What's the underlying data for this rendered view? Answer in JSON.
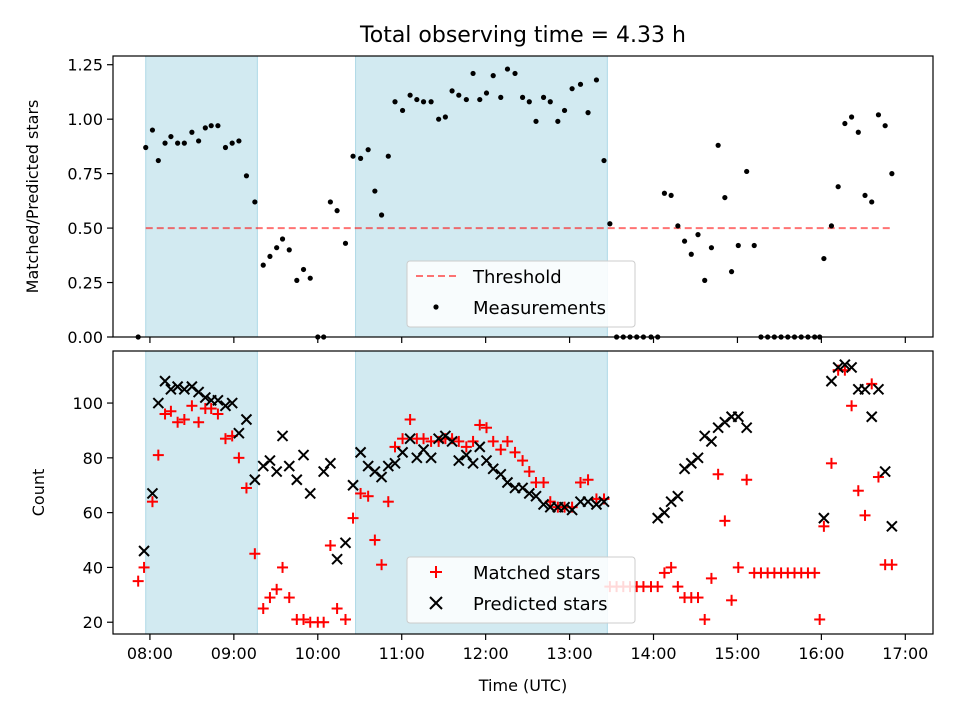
{
  "figure": {
    "title": "Total observing time = 4.33 h",
    "xlabel": "Time (UTC)",
    "x_ticks": [
      "08:00",
      "09:00",
      "10:00",
      "11:00",
      "12:00",
      "13:00",
      "14:00",
      "15:00",
      "16:00",
      "17:00"
    ],
    "x_range_hours": [
      7.56,
      17.33
    ],
    "shaded_intervals_hours": [
      [
        7.95,
        9.28
      ],
      [
        10.45,
        13.45
      ]
    ],
    "colors": {
      "shade": "#add8e6",
      "threshold": "#ff0000",
      "measurement": "#000000",
      "matched": "#ff0000",
      "predicted": "#000000"
    }
  },
  "chart_data": [
    {
      "type": "scatter",
      "ylabel": "Matched/Predicted stars",
      "ylim": [
        0,
        1.29
      ],
      "y_ticks": [
        "0.00",
        "0.25",
        "0.50",
        "0.75",
        "1.00",
        "1.25"
      ],
      "legend": {
        "placement": "lower-center",
        "entries": [
          "Threshold",
          "Measurements"
        ]
      },
      "threshold": {
        "name": "Threshold",
        "y": 0.5,
        "x_range": [
          7.95,
          16.85
        ]
      },
      "series": [
        {
          "name": "Measurements",
          "x": [
            7.86,
            7.95,
            8.03,
            8.1,
            8.18,
            8.25,
            8.33,
            8.41,
            8.5,
            8.58,
            8.66,
            8.73,
            8.81,
            8.9,
            8.98,
            9.06,
            9.15,
            9.25,
            9.35,
            9.43,
            9.51,
            9.58,
            9.66,
            9.75,
            9.83,
            9.91,
            10.0,
            10.07,
            10.15,
            10.23,
            10.33,
            10.42,
            10.51,
            10.6,
            10.68,
            10.76,
            10.84,
            10.92,
            11.01,
            11.1,
            11.18,
            11.26,
            11.35,
            11.44,
            11.52,
            11.6,
            11.68,
            11.77,
            11.85,
            11.93,
            12.01,
            12.09,
            12.18,
            12.26,
            12.35,
            12.44,
            12.52,
            12.6,
            12.69,
            12.77,
            12.86,
            12.94,
            13.03,
            13.13,
            13.22,
            13.32,
            13.41,
            13.48,
            13.56,
            13.64,
            13.72,
            13.8,
            13.88,
            13.97,
            14.05,
            14.13,
            14.21,
            14.29,
            14.37,
            14.45,
            14.53,
            14.61,
            14.69,
            14.77,
            14.85,
            14.93,
            15.01,
            15.11,
            15.2,
            15.28,
            15.36,
            15.44,
            15.52,
            15.6,
            15.68,
            15.76,
            15.84,
            15.92,
            15.98,
            16.03,
            16.12,
            16.2,
            16.28,
            16.36,
            16.44,
            16.52,
            16.6,
            16.68,
            16.76,
            16.84
          ],
          "y": [
            0.0,
            0.87,
            0.95,
            0.81,
            0.89,
            0.92,
            0.89,
            0.89,
            0.94,
            0.9,
            0.96,
            0.97,
            0.97,
            0.87,
            0.89,
            0.9,
            0.74,
            0.62,
            0.33,
            0.37,
            0.41,
            0.45,
            0.4,
            0.26,
            0.31,
            0.27,
            0.0,
            0.0,
            0.62,
            0.58,
            0.43,
            0.83,
            0.82,
            0.86,
            0.67,
            0.56,
            0.83,
            1.08,
            1.04,
            1.11,
            1.09,
            1.08,
            1.08,
            1.0,
            1.01,
            1.13,
            1.11,
            1.09,
            1.21,
            1.09,
            1.12,
            1.2,
            1.1,
            1.23,
            1.21,
            1.1,
            1.08,
            0.99,
            1.1,
            1.08,
            0.99,
            1.04,
            1.14,
            1.16,
            1.03,
            1.18,
            0.81,
            0.52,
            0.0,
            0.0,
            0.0,
            0.0,
            0.0,
            0.0,
            0.0,
            0.66,
            0.65,
            0.51,
            0.44,
            0.38,
            0.47,
            0.26,
            0.41,
            0.88,
            0.64,
            0.3,
            0.42,
            0.76,
            0.42,
            0.0,
            0.0,
            0.0,
            0.0,
            0.0,
            0.0,
            0.0,
            0.0,
            0.0,
            0.0,
            0.36,
            0.51,
            0.69,
            0.98,
            1.01,
            0.94,
            0.65,
            0.62,
            1.02,
            0.97,
            0.75
          ]
        }
      ]
    },
    {
      "type": "scatter",
      "ylabel": "Count",
      "ylim": [
        15.7,
        119
      ],
      "y_ticks": [
        "20",
        "40",
        "60",
        "80",
        "100"
      ],
      "legend": {
        "placement": "lower-center",
        "entries": [
          "Matched stars",
          "Predicted stars"
        ]
      },
      "series": [
        {
          "name": "Matched stars",
          "x": [
            7.86,
            7.93,
            8.03,
            8.1,
            8.18,
            8.25,
            8.33,
            8.41,
            8.5,
            8.58,
            8.66,
            8.73,
            8.81,
            8.9,
            8.98,
            9.06,
            9.15,
            9.25,
            9.35,
            9.43,
            9.51,
            9.58,
            9.66,
            9.75,
            9.83,
            9.91,
            10.0,
            10.07,
            10.15,
            10.23,
            10.33,
            10.42,
            10.51,
            10.6,
            10.68,
            10.76,
            10.84,
            10.92,
            11.01,
            11.1,
            11.18,
            11.26,
            11.35,
            11.44,
            11.52,
            11.6,
            11.68,
            11.77,
            11.85,
            11.93,
            12.01,
            12.09,
            12.18,
            12.26,
            12.35,
            12.44,
            12.52,
            12.6,
            12.69,
            12.77,
            12.86,
            12.94,
            13.03,
            13.13,
            13.22,
            13.32,
            13.41,
            13.48,
            13.56,
            13.64,
            13.72,
            13.8,
            13.88,
            13.97,
            14.05,
            14.13,
            14.21,
            14.29,
            14.37,
            14.45,
            14.53,
            14.61,
            14.69,
            14.77,
            14.85,
            14.93,
            15.01,
            15.11,
            15.2,
            15.28,
            15.36,
            15.44,
            15.52,
            15.6,
            15.68,
            15.76,
            15.84,
            15.92,
            15.98,
            16.03,
            16.12,
            16.2,
            16.28,
            16.36,
            16.44,
            16.52,
            16.6,
            16.68,
            16.76,
            16.84
          ],
          "y": [
            35,
            40,
            64,
            81,
            96,
            97,
            93,
            94,
            99,
            93,
            98,
            98,
            96,
            87,
            88,
            80,
            69,
            45,
            25,
            29,
            32,
            40,
            29,
            21,
            21,
            20,
            20,
            20,
            48,
            25,
            21,
            58,
            67,
            66,
            50,
            41,
            64,
            84,
            87,
            94,
            87,
            87,
            86,
            86,
            87,
            87,
            86,
            84,
            86,
            92,
            91,
            86,
            83,
            86,
            82,
            79,
            75,
            71,
            71,
            64,
            62,
            62,
            62,
            71,
            72,
            65,
            65,
            33,
            33,
            33,
            33,
            33,
            33,
            33,
            33,
            38,
            40,
            33,
            29,
            29,
            29,
            21,
            36,
            74,
            57,
            28,
            40,
            72,
            38,
            38,
            38,
            38,
            38,
            38,
            38,
            38,
            38,
            38,
            21,
            55,
            78,
            112,
            112,
            99,
            68,
            59,
            107,
            73,
            41,
            41
          ],
          "note": "x and y are in data units (hours, star count)"
        },
        {
          "name": "Predicted stars",
          "x": [
            7.93,
            8.03,
            8.1,
            8.18,
            8.25,
            8.33,
            8.41,
            8.5,
            8.58,
            8.66,
            8.73,
            8.81,
            8.9,
            8.98,
            9.06,
            9.15,
            9.25,
            9.35,
            9.43,
            9.51,
            9.58,
            9.66,
            9.75,
            9.83,
            9.91,
            10.07,
            10.15,
            10.23,
            10.33,
            10.42,
            10.51,
            10.6,
            10.68,
            10.76,
            10.84,
            10.92,
            11.01,
            11.1,
            11.18,
            11.26,
            11.35,
            11.44,
            11.52,
            11.6,
            11.68,
            11.77,
            11.85,
            11.93,
            12.01,
            12.09,
            12.18,
            12.26,
            12.35,
            12.44,
            12.52,
            12.6,
            12.69,
            12.77,
            12.86,
            12.94,
            13.03,
            13.13,
            13.22,
            13.32,
            13.41,
            14.05,
            14.13,
            14.21,
            14.29,
            14.37,
            14.45,
            14.53,
            14.61,
            14.69,
            14.77,
            14.85,
            14.93,
            15.01,
            15.11,
            16.03,
            16.12,
            16.2,
            16.28,
            16.36,
            16.44,
            16.52,
            16.6,
            16.68,
            16.76,
            16.84
          ],
          "y": [
            46,
            67,
            100,
            108,
            105,
            106,
            105,
            106,
            104,
            102,
            101,
            101,
            99,
            100,
            89,
            94,
            72,
            77,
            79,
            75,
            88,
            77,
            72,
            81,
            67,
            75,
            78,
            43,
            49,
            70,
            82,
            77,
            75,
            73,
            77,
            78,
            82,
            87,
            80,
            83,
            80,
            87,
            88,
            86,
            79,
            81,
            78,
            84,
            79,
            76,
            74,
            71,
            69,
            69,
            67,
            66,
            63,
            62,
            62,
            62,
            61,
            64,
            64,
            63,
            64,
            58,
            60,
            64,
            66,
            76,
            78,
            80,
            88,
            86,
            91,
            93,
            95,
            95,
            91,
            58,
            108,
            113,
            114,
            113,
            105,
            105,
            95,
            105,
            75,
            55
          ]
        }
      ]
    }
  ]
}
